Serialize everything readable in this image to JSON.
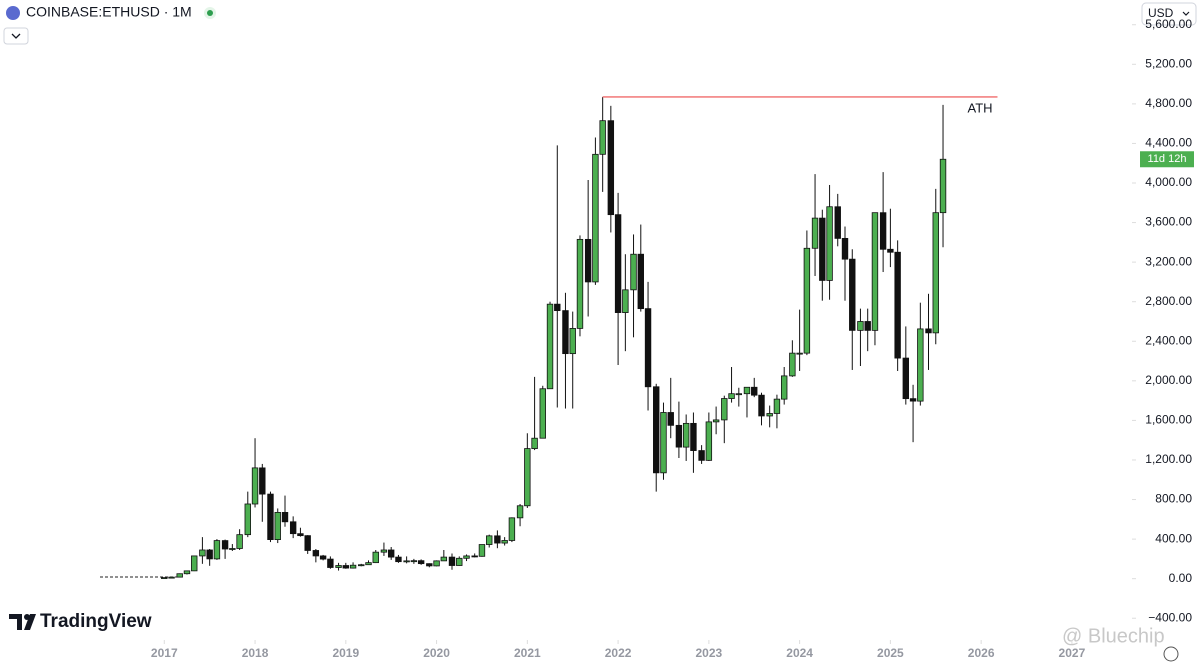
{
  "chart_data": {
    "type": "candlestick",
    "symbol": "COINBASE:ETHUSD · 1M",
    "currency": "USD",
    "countdown": "11d 12h",
    "brand": "TradingView",
    "watermark": "@ Bluechip",
    "up_color": "#4caf50",
    "down_color": "#111111",
    "xlim": [
      2015.19,
      2027.64
    ],
    "xticks": [
      2017,
      2018,
      2019,
      2020,
      2021,
      2022,
      2023,
      2024,
      2025,
      2026,
      2027
    ],
    "ylim": [
      -620,
      5850
    ],
    "yticks": [
      {
        "value": -400,
        "label": "−400.00"
      },
      {
        "value": 0,
        "label": "0.00"
      },
      {
        "value": 400,
        "label": "400.00"
      },
      {
        "value": 800,
        "label": "800.00"
      },
      {
        "value": 1200,
        "label": "1,200.00"
      },
      {
        "value": 1600,
        "label": "1,600.00"
      },
      {
        "value": 2000,
        "label": "2,000.00"
      },
      {
        "value": 2400,
        "label": "2,400.00"
      },
      {
        "value": 2800,
        "label": "2,800.00"
      },
      {
        "value": 3200,
        "label": "3,200.00"
      },
      {
        "value": 3600,
        "label": "3,600.00"
      },
      {
        "value": 4000,
        "label": "4,000.00"
      },
      {
        "value": 4400,
        "label": "4,400.00"
      },
      {
        "value": 4800,
        "label": "4,800.00"
      },
      {
        "value": 5200,
        "label": "5,200.00"
      },
      {
        "value": 5600,
        "label": "5,600.00"
      }
    ],
    "annotation": {
      "text": "ATH",
      "value": 4870,
      "xrange": [
        2021.83,
        2026.18
      ],
      "color": "#f06b6b"
    },
    "x": [
      2017.0,
      2017.08,
      2017.17,
      2017.25,
      2017.33,
      2017.42,
      2017.5,
      2017.58,
      2017.67,
      2017.75,
      2017.83,
      2017.92,
      2018.0,
      2018.08,
      2018.17,
      2018.25,
      2018.33,
      2018.42,
      2018.5,
      2018.58,
      2018.67,
      2018.75,
      2018.83,
      2018.92,
      2019.0,
      2019.08,
      2019.17,
      2019.25,
      2019.33,
      2019.42,
      2019.5,
      2019.58,
      2019.67,
      2019.75,
      2019.83,
      2019.92,
      2020.0,
      2020.08,
      2020.17,
      2020.25,
      2020.33,
      2020.42,
      2020.5,
      2020.58,
      2020.67,
      2020.75,
      2020.83,
      2020.92,
      2021.0,
      2021.08,
      2021.17,
      2021.25,
      2021.33,
      2021.42,
      2021.5,
      2021.58,
      2021.67,
      2021.75,
      2021.83,
      2021.92,
      2022.0,
      2022.08,
      2022.17,
      2022.25,
      2022.33,
      2022.42,
      2022.5,
      2022.58,
      2022.67,
      2022.75,
      2022.83,
      2022.92,
      2023.0,
      2023.08,
      2023.17,
      2023.25,
      2023.33,
      2023.42,
      2023.5,
      2023.58,
      2023.67,
      2023.75,
      2023.83,
      2023.92,
      2024.0,
      2024.08,
      2024.17,
      2024.25,
      2024.33,
      2024.42,
      2024.5,
      2024.58,
      2024.67,
      2024.75,
      2024.83,
      2024.92,
      2025.0,
      2025.08,
      2025.17,
      2025.25,
      2025.33,
      2025.42,
      2025.5,
      2025.58
    ],
    "open": [
      8,
      10.7,
      15.6,
      50,
      79,
      230,
      290,
      200,
      385,
      300,
      305,
      445,
      755,
      1120,
      855,
      395,
      670,
      575,
      455,
      435,
      285,
      230,
      198,
      113,
      133,
      107,
      136,
      141,
      162,
      268,
      290,
      218,
      172,
      180,
      182,
      152,
      129,
      180,
      218,
      133,
      206,
      230,
      226,
      345,
      433,
      360,
      386,
      615,
      737,
      1315,
      1420,
      1920,
      2775,
      2710,
      2275,
      2530,
      3430,
      3000,
      4290,
      4630,
      3680,
      2690,
      2920,
      3280,
      2730,
      1940,
      1070,
      1680,
      1550,
      1330,
      1570,
      1295,
      1196,
      1585,
      1605,
      1821,
      1870,
      1870,
      1935,
      1855,
      1645,
      1670,
      1815,
      2050,
      2280,
      2280,
      3340,
      3645,
      3015,
      3760,
      3440,
      3230,
      2510,
      2600,
      2510,
      3700,
      3330,
      3300,
      2230,
      1820,
      1795,
      2525,
      2485,
      3700
    ],
    "high": [
      11.4,
      16,
      53,
      80,
      230,
      420,
      300,
      400,
      395,
      350,
      500,
      880,
      1420,
      1160,
      880,
      710,
      840,
      630,
      515,
      440,
      300,
      240,
      225,
      160,
      160,
      165,
      150,
      185,
      290,
      365,
      320,
      240,
      225,
      200,
      195,
      155,
      185,
      290,
      255,
      225,
      245,
      255,
      345,
      445,
      488,
      420,
      620,
      755,
      1470,
      2040,
      1950,
      2800,
      4380,
      2890,
      2700,
      3470,
      4030,
      4460,
      4870,
      4780,
      3900,
      3280,
      3480,
      3580,
      3000,
      1970,
      1780,
      2030,
      1790,
      1660,
      1680,
      1350,
      1680,
      1740,
      1850,
      2140,
      1930,
      1930,
      2030,
      1880,
      1750,
      1860,
      2140,
      2410,
      2720,
      3520,
      4090,
      3730,
      3980,
      3890,
      3560,
      3330,
      2730,
      2730,
      3680,
      4110,
      3740,
      3420,
      2550,
      1960,
      2790,
      2880,
      3940,
      4790
    ],
    "low": [
      7.9,
      10.4,
      15.3,
      42,
      77,
      150,
      130,
      190,
      200,
      280,
      290,
      420,
      720,
      575,
      370,
      360,
      525,
      410,
      425,
      250,
      165,
      185,
      100,
      82,
      100,
      102,
      125,
      139,
      158,
      230,
      190,
      160,
      155,
      150,
      140,
      115,
      125,
      180,
      90,
      130,
      178,
      215,
      222,
      315,
      308,
      335,
      370,
      530,
      715,
      1300,
      1440,
      1920,
      1730,
      1720,
      1720,
      2450,
      2650,
      2970,
      3910,
      3500,
      2160,
      2300,
      2440,
      2700,
      1700,
      880,
      1000,
      1420,
      1220,
      1190,
      1070,
      1160,
      1190,
      1460,
      1370,
      1780,
      1740,
      1630,
      1835,
      1550,
      1530,
      1520,
      1760,
      2040,
      2100,
      2260,
      3060,
      2810,
      2820,
      3360,
      2810,
      2110,
      2150,
      2300,
      2360,
      3100,
      3150,
      2100,
      1760,
      1380,
      1750,
      2110,
      2370,
      3350
    ],
    "close": [
      10.7,
      15.6,
      50,
      79,
      230,
      290,
      200,
      385,
      300,
      305,
      445,
      755,
      1120,
      855,
      395,
      670,
      575,
      455,
      435,
      285,
      230,
      198,
      113,
      133,
      107,
      136,
      141,
      162,
      268,
      290,
      218,
      172,
      180,
      182,
      152,
      129,
      180,
      218,
      133,
      206,
      230,
      226,
      345,
      433,
      360,
      386,
      615,
      737,
      1315,
      1420,
      1920,
      2775,
      2710,
      2275,
      2530,
      3430,
      3000,
      4290,
      4630,
      3680,
      2690,
      2920,
      3280,
      2730,
      1940,
      1070,
      1680,
      1550,
      1330,
      1570,
      1295,
      1196,
      1585,
      1605,
      1821,
      1870,
      1870,
      1935,
      1855,
      1645,
      1670,
      1815,
      2050,
      2280,
      2280,
      3340,
      3645,
      3015,
      3760,
      3440,
      3230,
      2510,
      2600,
      2510,
      3700,
      3330,
      3300,
      2230,
      1820,
      1795,
      2525,
      2485,
      3700,
      4240
    ]
  }
}
